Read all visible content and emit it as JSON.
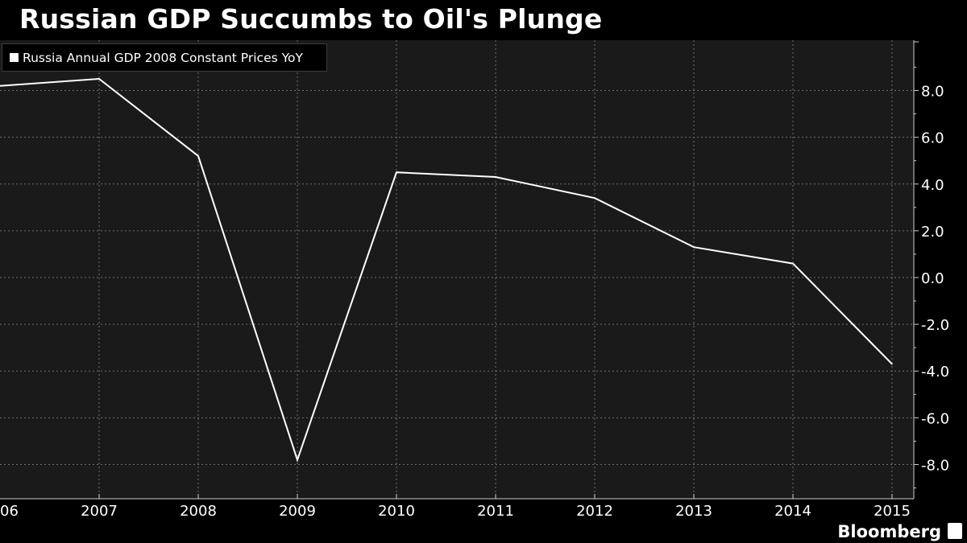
{
  "header": {
    "title": "Russian GDP Succumbs to Oil's Plunge"
  },
  "legend": {
    "series_label": "Russia Annual GDP 2008 Constant Prices YoY"
  },
  "footer": {
    "brand": "Bloomberg",
    "brand_icon": "bloomberg-terminal-icon"
  },
  "colors": {
    "background": "#000000",
    "plot_background": "#1a1a1a",
    "line": "#ffffff",
    "grid": "#6e6e6e",
    "text": "#ffffff"
  },
  "chart_data": {
    "type": "line",
    "title": "Russian GDP Succumbs to Oil's Plunge",
    "xlabel": "",
    "ylabel": "",
    "x_tick_labels": [
      "06",
      "2007",
      "2008",
      "2009",
      "2010",
      "2011",
      "2012",
      "2013",
      "2014",
      "2015"
    ],
    "y_tick_labels": [
      "8.0",
      "6.0",
      "4.0",
      "2.0",
      "0.0",
      "-2.0",
      "-4.0",
      "-6.0",
      "-8.0"
    ],
    "y_ticks": [
      8,
      6,
      4,
      2,
      0,
      -2,
      -4,
      -6,
      -8
    ],
    "ylim": [
      -9.3,
      10
    ],
    "xlim": [
      2006,
      2015.2
    ],
    "grid": true,
    "legend_position": "top-left",
    "y_axis_side": "right",
    "series": [
      {
        "name": "Russia Annual GDP 2008 Constant Prices YoY",
        "x": [
          2006,
          2007,
          2008,
          2009,
          2010,
          2011,
          2012,
          2013,
          2014,
          2015
        ],
        "values": [
          8.2,
          8.5,
          5.2,
          -7.8,
          4.5,
          4.3,
          3.4,
          1.3,
          0.6,
          -3.7
        ]
      }
    ]
  }
}
